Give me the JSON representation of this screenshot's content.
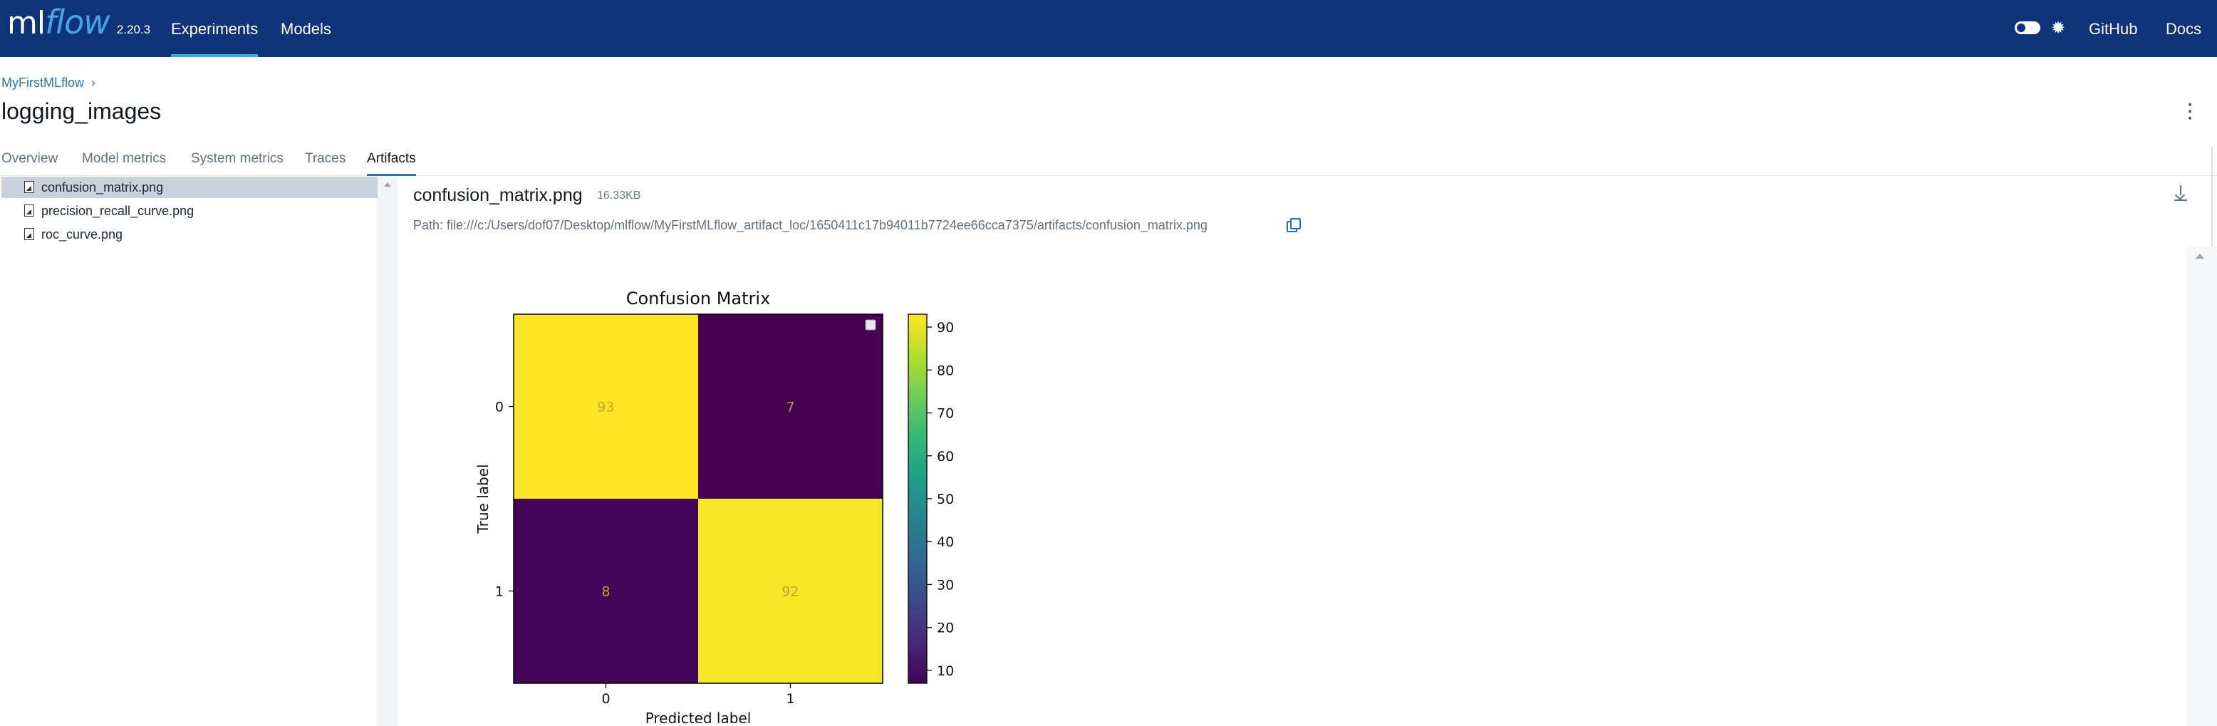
{
  "header": {
    "logo_ml": "ml",
    "logo_flow": "flow",
    "version": "2.20.3",
    "nav": [
      "Experiments",
      "Models"
    ],
    "right_links": [
      "GitHub",
      "Docs"
    ],
    "colors": {
      "background": "#0d3478",
      "accent": "#43a5e6"
    }
  },
  "breadcrumb": {
    "experiment": "MyFirstMLflow",
    "separator": "›"
  },
  "page": {
    "title": "logging_images"
  },
  "tabs": [
    {
      "label": "Overview"
    },
    {
      "label": "Model metrics"
    },
    {
      "label": "System metrics"
    },
    {
      "label": "Traces"
    },
    {
      "label": "Artifacts",
      "active": true
    }
  ],
  "files": [
    {
      "name": "confusion_matrix.png",
      "selected": true
    },
    {
      "name": "precision_recall_curve.png"
    },
    {
      "name": "roc_curve.png"
    }
  ],
  "artifact": {
    "name": "confusion_matrix.png",
    "size": "16.33KB",
    "path": "Path: file:///c:/Users/dof07/Desktop/mlflow/MyFirstMLflow_artifact_loc/1650411c17b94011b7724ee66cca7375/artifacts/confusion_matrix.png"
  },
  "chart_data": {
    "type": "heatmap",
    "title": "Confusion Matrix",
    "xlabel": "Predicted label",
    "ylabel": "True label",
    "x_categories": [
      "0",
      "1"
    ],
    "y_categories": [
      "0",
      "1"
    ],
    "values": [
      [
        93,
        7
      ],
      [
        8,
        92
      ]
    ],
    "colorbar_ticks": [
      10,
      20,
      30,
      40,
      50,
      60,
      70,
      80,
      90
    ],
    "colorbar_range": [
      7,
      93
    ],
    "colormap": "viridis",
    "colors": {
      "low": "#440154",
      "high": "#fde725",
      "text_on_cells": "#c8a035"
    }
  }
}
